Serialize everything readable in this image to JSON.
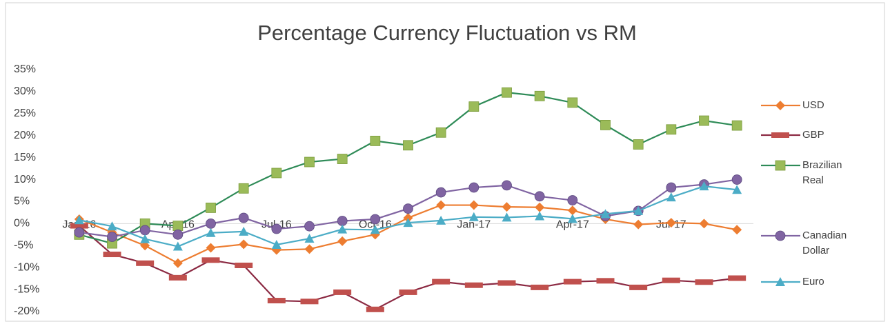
{
  "chart_data": {
    "type": "line",
    "title": "Percentage Currency Fluctuation vs RM",
    "categories": [
      "Jan-16",
      null,
      null,
      "Apr-16",
      null,
      null,
      "Jul-16",
      null,
      null,
      "Oct-16",
      null,
      null,
      "Jan-17",
      null,
      null,
      "Apr-17",
      null,
      null,
      "Jul-17",
      null,
      null
    ],
    "series": [
      {
        "name": "USD",
        "color": "#ed7d31",
        "marker": "diamond",
        "marker_color": "#ed7d31",
        "values": [
          1,
          -2,
          -5,
          -9,
          -5.5,
          -4.7,
          -6,
          -5.8,
          -4,
          -2.5,
          1.3,
          4.2,
          4.2,
          3.8,
          3.7,
          3,
          1,
          -0.2,
          0.2,
          0,
          -1.4
        ]
      },
      {
        "name": "GBP",
        "color": "#8b2942",
        "marker": "dash",
        "marker_color": "#c0504d",
        "values": [
          -0.5,
          -7,
          -9,
          -12.3,
          -8.3,
          -9.5,
          -17.5,
          -17.7,
          -15.6,
          -19.5,
          -15.6,
          -13.2,
          -14,
          -13.5,
          -14.5,
          -13.2,
          -13,
          -14.5,
          -12.9,
          -13.3,
          -12.4
        ]
      },
      {
        "name": "Brazilian Real",
        "color": "#2e8b57",
        "marker": "square",
        "marker_color": "#9bbb59",
        "values": [
          -2.5,
          -4.5,
          0,
          -0.5,
          3.6,
          8,
          11.5,
          14,
          14.7,
          18.8,
          17.8,
          20.7,
          26.6,
          29.8,
          29,
          27.5,
          22.4,
          18,
          21.4,
          23.4,
          22.3
        ]
      },
      {
        "name": "Canadian Dollar",
        "color": "#8064a2",
        "marker": "circle",
        "marker_color": "#8064a2",
        "values": [
          -2,
          -3,
          -1.5,
          -2.5,
          0,
          1.3,
          -1.2,
          -0.6,
          0.6,
          1,
          3.4,
          7.1,
          8.2,
          8.7,
          6.2,
          5.3,
          1.7,
          2.9,
          8.2,
          8.9,
          10
        ]
      },
      {
        "name": "Euro",
        "color": "#4bacc6",
        "marker": "triangle",
        "marker_color": "#4bacc6",
        "values": [
          0.8,
          -0.6,
          -3.5,
          -5.2,
          -2.1,
          -1.8,
          -4.8,
          -3.4,
          -1.3,
          -1.4,
          0.2,
          0.7,
          1.5,
          1.4,
          1.7,
          1.1,
          2.2,
          2.9,
          6,
          8.5,
          7.7
        ]
      }
    ],
    "ylim": [
      -20,
      35
    ],
    "yticks": [
      {
        "value": -20,
        "label": "-20%"
      },
      {
        "value": -15,
        "label": "-15%"
      },
      {
        "value": -10,
        "label": "-10%"
      },
      {
        "value": -5,
        "label": "-5%"
      },
      {
        "value": 0,
        "label": "0%"
      },
      {
        "value": 5,
        "label": "5%"
      },
      {
        "value": 10,
        "label": "10%"
      },
      {
        "value": 15,
        "label": "15%"
      },
      {
        "value": 20,
        "label": "20%"
      },
      {
        "value": 25,
        "label": "25%"
      },
      {
        "value": 30,
        "label": "30%"
      },
      {
        "value": 35,
        "label": "35%"
      }
    ],
    "legend": "right"
  }
}
